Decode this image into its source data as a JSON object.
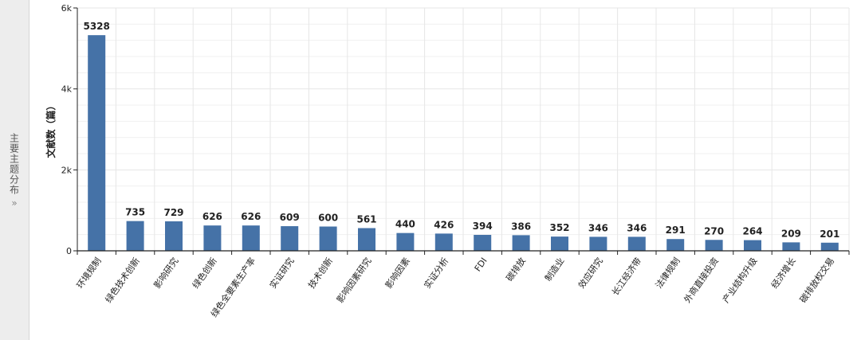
{
  "side_tab": {
    "label": "主要主题分布",
    "chevron": "»"
  },
  "colors": {
    "bar": "#4572a7",
    "grid": "#e6e6e6",
    "axis": "#222222",
    "side_bg": "#ededed"
  },
  "chart_data": {
    "type": "bar",
    "title": "",
    "xlabel": "",
    "ylabel": "文献数（篇）",
    "ylim": [
      0,
      6000
    ],
    "yticks": [
      {
        "value": 0,
        "label": "0"
      },
      {
        "value": 2000,
        "label": "2k"
      },
      {
        "value": 4000,
        "label": "4k"
      },
      {
        "value": 6000,
        "label": "6k"
      }
    ],
    "grid": true,
    "categories": [
      "环境规制",
      "绿色技术创新",
      "影响研究",
      "绿色创新",
      "绿色全要素生产率",
      "实证研究",
      "技术创新",
      "影响因素研究",
      "影响因素",
      "实证分析",
      "FDI",
      "碳排放",
      "制造业",
      "效应研究",
      "长江经济带",
      "法律规制",
      "外商直接投资",
      "产业结构升级",
      "经济增长",
      "碳排放权交易"
    ],
    "values": [
      5328,
      735,
      729,
      626,
      626,
      609,
      600,
      561,
      440,
      426,
      394,
      386,
      352,
      346,
      346,
      291,
      270,
      264,
      209,
      201
    ]
  }
}
